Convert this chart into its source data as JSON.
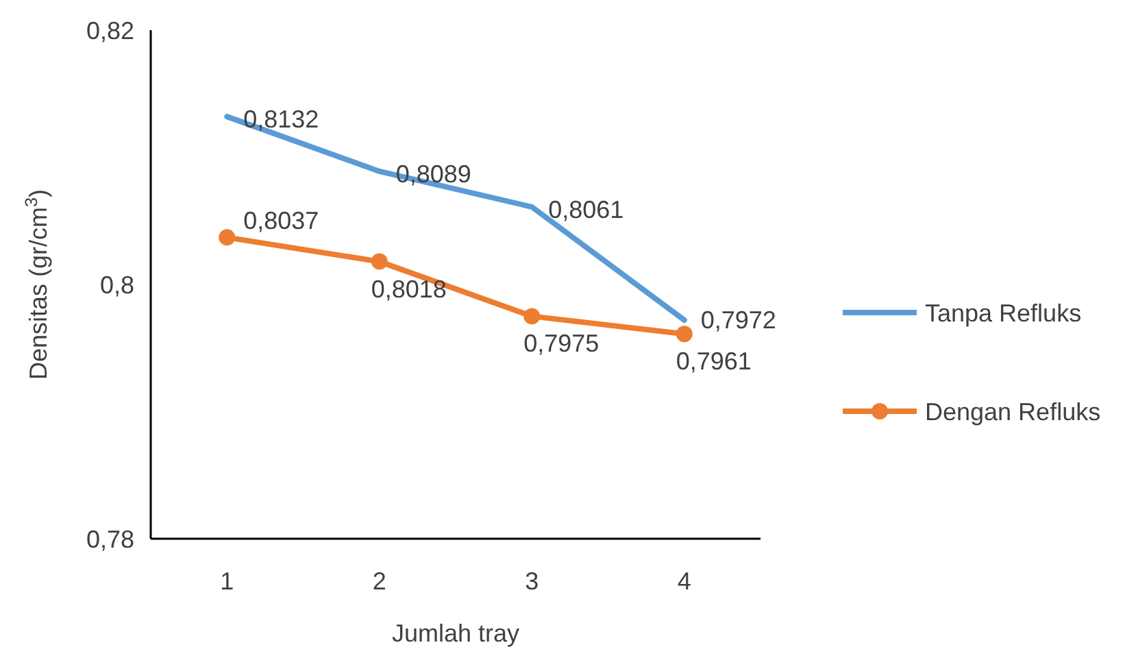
{
  "chart_data": {
    "type": "line",
    "xlabel": "Jumlah tray",
    "ylabel": "Densitas (gr/cm$^{3}$)",
    "categories": [
      "1",
      "2",
      "3",
      "4"
    ],
    "series": [
      {
        "name": "Tanpa Refluks",
        "color": "#5b9bd5",
        "marker": "none",
        "values": [
          0.8132,
          0.8089,
          0.8061,
          0.7972
        ],
        "value_labels": [
          "0,8132",
          "0,8089",
          "0,8061",
          "0,7972"
        ]
      },
      {
        "name": "Dengan Refluks",
        "color": "#ed7d31",
        "marker": "circle",
        "values": [
          0.8037,
          0.8018,
          0.7975,
          0.7961
        ],
        "value_labels": [
          "0,8037",
          "0,8018",
          "0,7975",
          "0,7961"
        ]
      }
    ],
    "ylim": [
      0.78,
      0.82
    ],
    "yticks": [
      {
        "value": 0.78,
        "label": "0,78"
      },
      {
        "value": 0.8,
        "label": "0,8"
      },
      {
        "value": 0.82,
        "label": "0,82"
      }
    ],
    "grid": false,
    "legend": "right",
    "line_style": "solid"
  }
}
